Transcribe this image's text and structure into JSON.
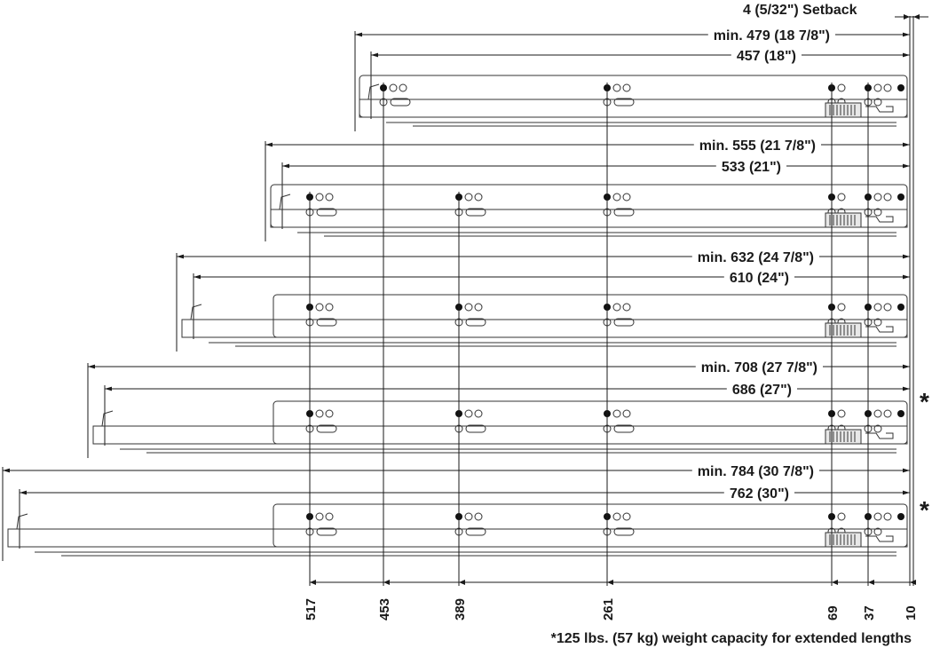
{
  "setback": "4 (5/32\") Setback",
  "slides": [
    {
      "min_label": "min. 479 (18 7/8\")",
      "len_label": "457 (18\")",
      "star": ""
    },
    {
      "min_label": "min. 555 (21 7/8\")",
      "len_label": "533 (21\")",
      "star": ""
    },
    {
      "min_label": "min. 632 (24 7/8\")",
      "len_label": "610 (24\")",
      "star": ""
    },
    {
      "min_label": "min. 708 (27 7/8\")",
      "len_label": "686 (27\")",
      "star": "*"
    },
    {
      "min_label": "min. 784 (30 7/8\")",
      "len_label": "762 (30\")",
      "star": "*"
    }
  ],
  "positions": [
    "517",
    "453",
    "389",
    "261",
    "69",
    "37",
    "10"
  ],
  "footnote": "*125 lbs. (57 kg) weight capacity for extended lengths",
  "colors": {
    "line": "#1a1a1a",
    "hole_fill": "#111111",
    "drawing": "#333333"
  }
}
